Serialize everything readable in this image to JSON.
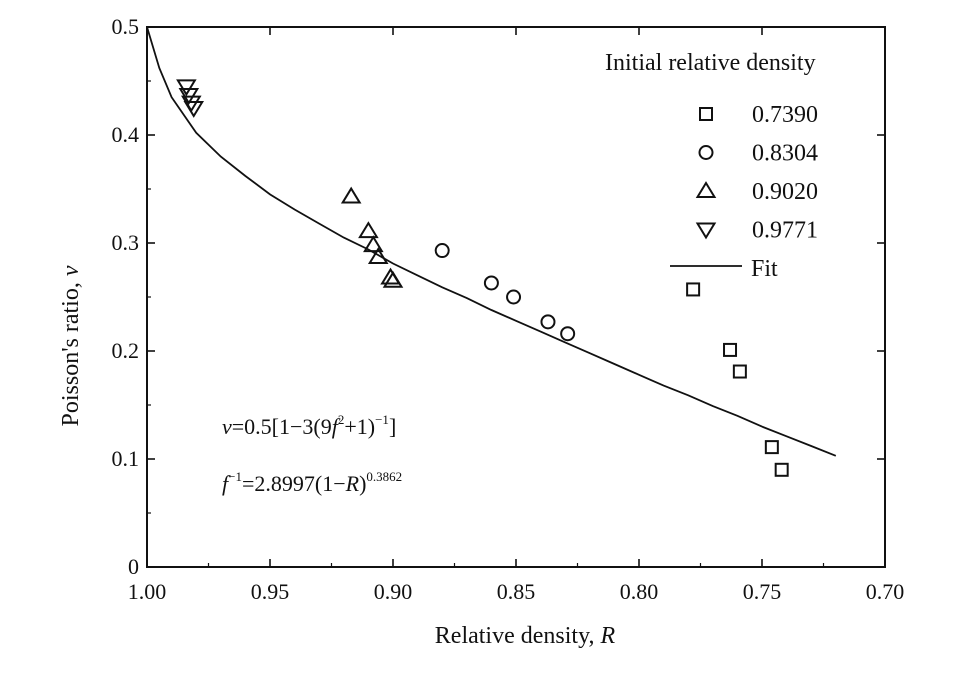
{
  "chart_data": {
    "type": "scatter",
    "title": "",
    "xlabel": {
      "text": "Relative density, ",
      "var": "R"
    },
    "ylabel": {
      "text": "Poisson's ratio, ",
      "var": "v"
    },
    "xlim": [
      1.0,
      0.7
    ],
    "ylim": [
      0,
      0.5
    ],
    "x_ticks": [
      1.0,
      0.95,
      0.9,
      0.85,
      0.8,
      0.75,
      0.7
    ],
    "x_tick_labels": [
      "1.00",
      "0.95",
      "0.90",
      "0.85",
      "0.80",
      "0.75",
      "0.70"
    ],
    "y_ticks": [
      0,
      0.1,
      0.2,
      0.3,
      0.4,
      0.5
    ],
    "y_tick_labels": [
      "0",
      "0.1",
      "0.2",
      "0.3",
      "0.4",
      "0.5"
    ],
    "grid": false,
    "legend": {
      "title": "Initial relative density",
      "position": "top-right",
      "entries": [
        {
          "label": "0.7390",
          "marker": "square"
        },
        {
          "label": "0.8304",
          "marker": "circle"
        },
        {
          "label": "0.9020",
          "marker": "triangle-up"
        },
        {
          "label": "0.9771",
          "marker": "triangle-down"
        },
        {
          "label": "Fit",
          "marker": "line"
        }
      ]
    },
    "series": [
      {
        "name": "0.7390",
        "marker": "square",
        "points": [
          [
            0.778,
            0.257
          ],
          [
            0.763,
            0.201
          ],
          [
            0.759,
            0.181
          ],
          [
            0.746,
            0.111
          ],
          [
            0.742,
            0.09
          ]
        ]
      },
      {
        "name": "0.8304",
        "marker": "circle",
        "points": [
          [
            0.88,
            0.293
          ],
          [
            0.86,
            0.263
          ],
          [
            0.851,
            0.25
          ],
          [
            0.837,
            0.227
          ],
          [
            0.829,
            0.216
          ]
        ]
      },
      {
        "name": "0.9020",
        "marker": "triangle-up",
        "points": [
          [
            0.917,
            0.343
          ],
          [
            0.91,
            0.311
          ],
          [
            0.908,
            0.298
          ],
          [
            0.906,
            0.287
          ],
          [
            0.901,
            0.268
          ],
          [
            0.9,
            0.265
          ]
        ]
      },
      {
        "name": "0.9771",
        "marker": "triangle-down",
        "points": [
          [
            0.984,
            0.445
          ],
          [
            0.983,
            0.437
          ],
          [
            0.982,
            0.43
          ],
          [
            0.981,
            0.425
          ]
        ]
      },
      {
        "name": "Fit",
        "type": "line",
        "points": [
          [
            1.0,
            0.5
          ],
          [
            0.995,
            0.462
          ],
          [
            0.99,
            0.435
          ],
          [
            0.98,
            0.402
          ],
          [
            0.97,
            0.38
          ],
          [
            0.96,
            0.362
          ],
          [
            0.95,
            0.345
          ],
          [
            0.94,
            0.331
          ],
          [
            0.93,
            0.318
          ],
          [
            0.92,
            0.305
          ],
          [
            0.91,
            0.294
          ],
          [
            0.9,
            0.281
          ],
          [
            0.89,
            0.27
          ],
          [
            0.88,
            0.259
          ],
          [
            0.87,
            0.249
          ],
          [
            0.86,
            0.238
          ],
          [
            0.85,
            0.228
          ],
          [
            0.84,
            0.218
          ],
          [
            0.83,
            0.208
          ],
          [
            0.82,
            0.198
          ],
          [
            0.81,
            0.188
          ],
          [
            0.8,
            0.178
          ],
          [
            0.79,
            0.168
          ],
          [
            0.78,
            0.159
          ],
          [
            0.77,
            0.149
          ],
          [
            0.76,
            0.14
          ],
          [
            0.75,
            0.13
          ],
          [
            0.74,
            0.121
          ],
          [
            0.73,
            0.112
          ],
          [
            0.72,
            0.103
          ]
        ]
      }
    ],
    "annotations": [
      {
        "name": "formula-1",
        "parts": [
          {
            "t": "v",
            "style": "italic"
          },
          {
            "t": "=0.5[1−3(9"
          },
          {
            "t": "f",
            "style": "italic"
          },
          {
            "t": "2",
            "style": "sup"
          },
          {
            "t": "+1)"
          },
          {
            "t": "−1",
            "style": "sup"
          },
          {
            "t": "]"
          }
        ]
      },
      {
        "name": "formula-2",
        "parts": [
          {
            "t": "f",
            "style": "italic"
          },
          {
            "t": "−1",
            "style": "sup"
          },
          {
            "t": "=2.8997(1−"
          },
          {
            "t": "R",
            "style": "italic"
          },
          {
            "t": ")"
          },
          {
            "t": "0.3862",
            "style": "sup"
          }
        ]
      }
    ]
  }
}
